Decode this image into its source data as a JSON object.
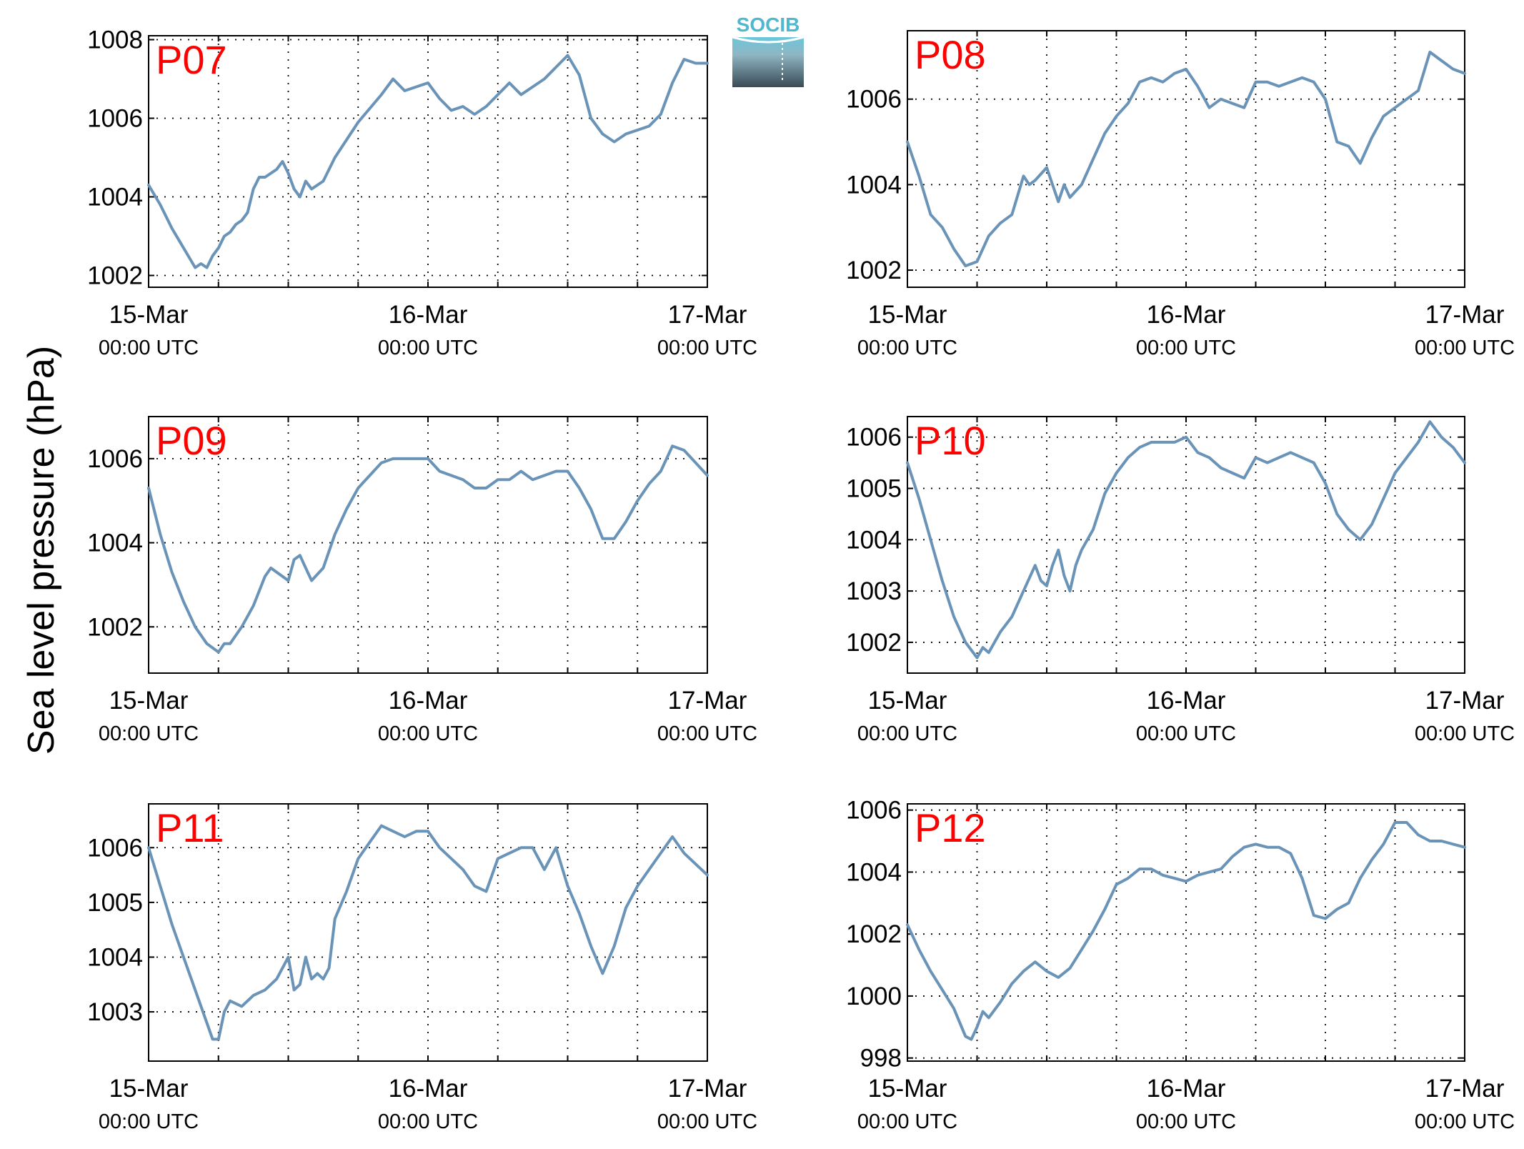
{
  "ylabel": "Sea level pressure (hPa)",
  "logo_text": "SOCIB",
  "colors": {
    "line": "#6a93b8",
    "panel_label": "#ff0000",
    "logo_top": "#6cc6da",
    "logo_bottom": "#3a4a55"
  },
  "chart_data": [
    {
      "type": "line",
      "label": "P07",
      "xlim": [
        0,
        48
      ],
      "ylim": [
        1001.7,
        1008.1
      ],
      "yticks": [
        1002,
        1004,
        1006,
        1008
      ],
      "xticks": [
        {
          "x": 0,
          "date": "15-Mar",
          "time": "00:00 UTC"
        },
        {
          "x": 24,
          "date": "16-Mar",
          "time": "00:00 UTC"
        },
        {
          "x": 48,
          "date": "17-Mar",
          "time": "00:00 UTC"
        }
      ],
      "gridx": [
        6,
        12,
        18,
        30,
        36,
        42
      ],
      "series": [
        {
          "x": [
            0,
            1,
            2,
            3,
            4,
            4.5,
            5,
            5.5,
            6,
            6.5,
            7,
            7.5,
            8,
            8.5,
            9,
            9.5,
            10,
            11,
            11.5,
            12,
            12.5,
            13,
            13.5,
            14,
            15,
            16,
            18,
            20,
            21,
            22,
            23,
            24,
            25,
            26,
            27,
            28,
            29,
            30,
            31,
            32,
            33,
            34,
            35,
            36,
            37,
            38,
            39,
            40,
            41,
            42,
            43,
            44,
            45,
            46,
            47,
            48
          ],
          "y": [
            1004.3,
            1003.8,
            1003.2,
            1002.7,
            1002.2,
            1002.3,
            1002.2,
            1002.5,
            1002.7,
            1003.0,
            1003.1,
            1003.3,
            1003.4,
            1003.6,
            1004.2,
            1004.5,
            1004.5,
            1004.7,
            1004.9,
            1004.6,
            1004.2,
            1004.0,
            1004.4,
            1004.2,
            1004.4,
            1005.0,
            1005.9,
            1006.6,
            1007.0,
            1006.7,
            1006.8,
            1006.9,
            1006.5,
            1006.2,
            1006.3,
            1006.1,
            1006.3,
            1006.6,
            1006.9,
            1006.6,
            1006.8,
            1007.0,
            1007.3,
            1007.6,
            1007.1,
            1006.0,
            1005.6,
            1005.4,
            1005.6,
            1005.7,
            1005.8,
            1006.1,
            1006.9,
            1007.5,
            1007.4,
            1007.4
          ]
        }
      ]
    },
    {
      "type": "line",
      "label": "P08",
      "xlim": [
        0,
        48
      ],
      "ylim": [
        1001.6,
        1007.6
      ],
      "yticks": [
        1002,
        1004,
        1006
      ],
      "xticks": [
        {
          "x": 0,
          "date": "15-Mar",
          "time": "00:00 UTC"
        },
        {
          "x": 24,
          "date": "16-Mar",
          "time": "00:00 UTC"
        },
        {
          "x": 48,
          "date": "17-Mar",
          "time": "00:00 UTC"
        }
      ],
      "gridx": [
        6,
        12,
        18,
        30,
        36,
        42
      ],
      "series": [
        {
          "x": [
            0,
            1,
            2,
            3,
            4,
            5,
            6,
            7,
            8,
            9,
            10,
            10.5,
            11,
            12,
            12.5,
            13,
            13.5,
            14,
            15,
            16,
            17,
            18,
            19,
            20,
            21,
            22,
            23,
            24,
            25,
            26,
            27,
            28,
            29,
            30,
            31,
            32,
            33,
            34,
            35,
            36,
            37,
            38,
            39,
            40,
            41,
            42,
            43,
            44,
            45,
            46,
            47,
            48
          ],
          "y": [
            1005.0,
            1004.2,
            1003.3,
            1003.0,
            1002.5,
            1002.1,
            1002.2,
            1002.8,
            1003.1,
            1003.3,
            1004.2,
            1004.0,
            1004.1,
            1004.4,
            1004.0,
            1003.6,
            1004.0,
            1003.7,
            1004.0,
            1004.6,
            1005.2,
            1005.6,
            1005.9,
            1006.4,
            1006.5,
            1006.4,
            1006.6,
            1006.7,
            1006.3,
            1005.8,
            1006.0,
            1005.9,
            1005.8,
            1006.4,
            1006.4,
            1006.3,
            1006.4,
            1006.5,
            1006.4,
            1006.0,
            1005.0,
            1004.9,
            1004.5,
            1005.1,
            1005.6,
            1005.8,
            1006.0,
            1006.2,
            1007.1,
            1006.9,
            1006.7,
            1006.6
          ]
        }
      ]
    },
    {
      "type": "line",
      "label": "P09",
      "xlim": [
        0,
        48
      ],
      "ylim": [
        1000.9,
        1007.0
      ],
      "yticks": [
        1002,
        1004,
        1006
      ],
      "xticks": [
        {
          "x": 0,
          "date": "15-Mar",
          "time": "00:00 UTC"
        },
        {
          "x": 24,
          "date": "16-Mar",
          "time": "00:00 UTC"
        },
        {
          "x": 48,
          "date": "17-Mar",
          "time": "00:00 UTC"
        }
      ],
      "gridx": [
        6,
        12,
        18,
        30,
        36,
        42
      ],
      "series": [
        {
          "x": [
            0,
            1,
            2,
            3,
            4,
            5,
            6,
            6.5,
            7,
            7.5,
            8,
            9,
            10,
            10.5,
            11,
            12,
            12.5,
            13,
            13.5,
            14,
            15,
            16,
            17,
            18,
            19,
            20,
            21,
            22,
            23,
            24,
            25,
            26,
            27,
            28,
            29,
            30,
            31,
            32,
            33,
            34,
            35,
            36,
            37,
            38,
            39,
            40,
            41,
            42,
            43,
            44,
            45,
            46,
            47,
            48
          ],
          "y": [
            1005.3,
            1004.2,
            1003.3,
            1002.6,
            1002.0,
            1001.6,
            1001.4,
            1001.6,
            1001.6,
            1001.8,
            1002.0,
            1002.5,
            1003.2,
            1003.4,
            1003.3,
            1003.1,
            1003.6,
            1003.7,
            1003.4,
            1003.1,
            1003.4,
            1004.2,
            1004.8,
            1005.3,
            1005.6,
            1005.9,
            1006.0,
            1006.0,
            1006.0,
            1006.0,
            1005.7,
            1005.6,
            1005.5,
            1005.3,
            1005.3,
            1005.5,
            1005.5,
            1005.7,
            1005.5,
            1005.6,
            1005.7,
            1005.7,
            1005.3,
            1004.8,
            1004.1,
            1004.1,
            1004.5,
            1005.0,
            1005.4,
            1005.7,
            1006.3,
            1006.2,
            1005.9,
            1005.6
          ]
        }
      ]
    },
    {
      "type": "line",
      "label": "P10",
      "xlim": [
        0,
        48
      ],
      "ylim": [
        1001.4,
        1006.4
      ],
      "yticks": [
        1002,
        1003,
        1004,
        1005,
        1006
      ],
      "xticks": [
        {
          "x": 0,
          "date": "15-Mar",
          "time": "00:00 UTC"
        },
        {
          "x": 24,
          "date": "16-Mar",
          "time": "00:00 UTC"
        },
        {
          "x": 48,
          "date": "17-Mar",
          "time": "00:00 UTC"
        }
      ],
      "gridx": [
        6,
        12,
        18,
        30,
        36,
        42
      ],
      "series": [
        {
          "x": [
            0,
            1,
            2,
            3,
            4,
            5,
            6,
            6.5,
            7,
            7.5,
            8,
            9,
            10,
            11,
            11.5,
            12,
            12.5,
            13,
            13.5,
            14,
            14.5,
            15,
            16,
            17,
            18,
            19,
            20,
            21,
            22,
            23,
            24,
            25,
            26,
            27,
            28,
            29,
            30,
            31,
            32,
            33,
            34,
            35,
            36,
            37,
            38,
            39,
            40,
            41,
            42,
            43,
            44,
            45,
            46,
            47,
            48
          ],
          "y": [
            1005.5,
            1004.8,
            1004.0,
            1003.2,
            1002.5,
            1002.0,
            1001.7,
            1001.9,
            1001.8,
            1002.0,
            1002.2,
            1002.5,
            1003.0,
            1003.5,
            1003.2,
            1003.1,
            1003.5,
            1003.8,
            1003.3,
            1003.0,
            1003.5,
            1003.8,
            1004.2,
            1004.9,
            1005.3,
            1005.6,
            1005.8,
            1005.9,
            1005.9,
            1005.9,
            1006.0,
            1005.7,
            1005.6,
            1005.4,
            1005.3,
            1005.2,
            1005.6,
            1005.5,
            1005.6,
            1005.7,
            1005.6,
            1005.5,
            1005.1,
            1004.5,
            1004.2,
            1004.0,
            1004.3,
            1004.8,
            1005.3,
            1005.6,
            1005.9,
            1006.3,
            1006.0,
            1005.8,
            1005.5
          ]
        }
      ]
    },
    {
      "type": "line",
      "label": "P11",
      "xlim": [
        0,
        48
      ],
      "ylim": [
        1002.1,
        1006.8
      ],
      "yticks": [
        1003,
        1004,
        1005,
        1006
      ],
      "xticks": [
        {
          "x": 0,
          "date": "15-Mar",
          "time": "00:00 UTC"
        },
        {
          "x": 24,
          "date": "16-Mar",
          "time": "00:00 UTC"
        },
        {
          "x": 48,
          "date": "17-Mar",
          "time": "00:00 UTC"
        }
      ],
      "gridx": [
        6,
        12,
        18,
        30,
        36,
        42
      ],
      "series": [
        {
          "x": [
            0,
            1,
            2,
            3,
            4,
            5,
            5.5,
            6,
            6.5,
            7,
            8,
            9,
            10,
            11,
            12,
            12.5,
            13,
            13.5,
            14,
            14.5,
            15,
            15.5,
            16,
            17,
            18,
            19,
            20,
            21,
            22,
            23,
            24,
            25,
            26,
            27,
            28,
            29,
            30,
            31,
            32,
            33,
            34,
            35,
            36,
            37,
            38,
            39,
            40,
            41,
            42,
            43,
            44,
            45,
            46,
            47,
            48
          ],
          "y": [
            1006.0,
            1005.3,
            1004.6,
            1004.0,
            1003.4,
            1002.8,
            1002.5,
            1002.5,
            1003.0,
            1003.2,
            1003.1,
            1003.3,
            1003.4,
            1003.6,
            1004.0,
            1003.4,
            1003.5,
            1004.0,
            1003.6,
            1003.7,
            1003.6,
            1003.8,
            1004.7,
            1005.2,
            1005.8,
            1006.1,
            1006.4,
            1006.3,
            1006.2,
            1006.3,
            1006.3,
            1006.0,
            1005.8,
            1005.6,
            1005.3,
            1005.2,
            1005.8,
            1005.9,
            1006.0,
            1006.0,
            1005.6,
            1006.0,
            1005.3,
            1004.8,
            1004.2,
            1003.7,
            1004.2,
            1004.9,
            1005.3,
            1005.6,
            1005.9,
            1006.2,
            1005.9,
            1005.7,
            1005.5
          ]
        }
      ]
    },
    {
      "type": "line",
      "label": "P12",
      "xlim": [
        0,
        48
      ],
      "ylim": [
        997.9,
        1006.2
      ],
      "yticks": [
        998,
        1000,
        1002,
        1004,
        1006
      ],
      "xticks": [
        {
          "x": 0,
          "date": "15-Mar",
          "time": "00:00 UTC"
        },
        {
          "x": 24,
          "date": "16-Mar",
          "time": "00:00 UTC"
        },
        {
          "x": 48,
          "date": "17-Mar",
          "time": "00:00 UTC"
        }
      ],
      "gridx": [
        6,
        12,
        18,
        30,
        36,
        42
      ],
      "series": [
        {
          "x": [
            0,
            1,
            2,
            3,
            4,
            5,
            5.5,
            6,
            6.5,
            7,
            8,
            9,
            10,
            11,
            12,
            13,
            14,
            15,
            16,
            17,
            18,
            19,
            20,
            21,
            22,
            23,
            24,
            25,
            26,
            27,
            28,
            29,
            30,
            31,
            32,
            33,
            34,
            35,
            36,
            37,
            38,
            39,
            40,
            41,
            42,
            43,
            44,
            45,
            46,
            47,
            48
          ],
          "y": [
            1002.3,
            1001.5,
            1000.8,
            1000.2,
            999.6,
            998.7,
            998.6,
            999.0,
            999.5,
            999.3,
            999.8,
            1000.4,
            1000.8,
            1001.1,
            1000.8,
            1000.6,
            1000.9,
            1001.5,
            1002.1,
            1002.8,
            1003.6,
            1003.8,
            1004.1,
            1004.1,
            1003.9,
            1003.8,
            1003.7,
            1003.9,
            1004.0,
            1004.1,
            1004.5,
            1004.8,
            1004.9,
            1004.8,
            1004.8,
            1004.6,
            1003.8,
            1002.6,
            1002.5,
            1002.8,
            1003.0,
            1003.8,
            1004.4,
            1004.9,
            1005.6,
            1005.6,
            1005.2,
            1005.0,
            1005.0,
            1004.9,
            1004.8
          ]
        }
      ]
    }
  ]
}
